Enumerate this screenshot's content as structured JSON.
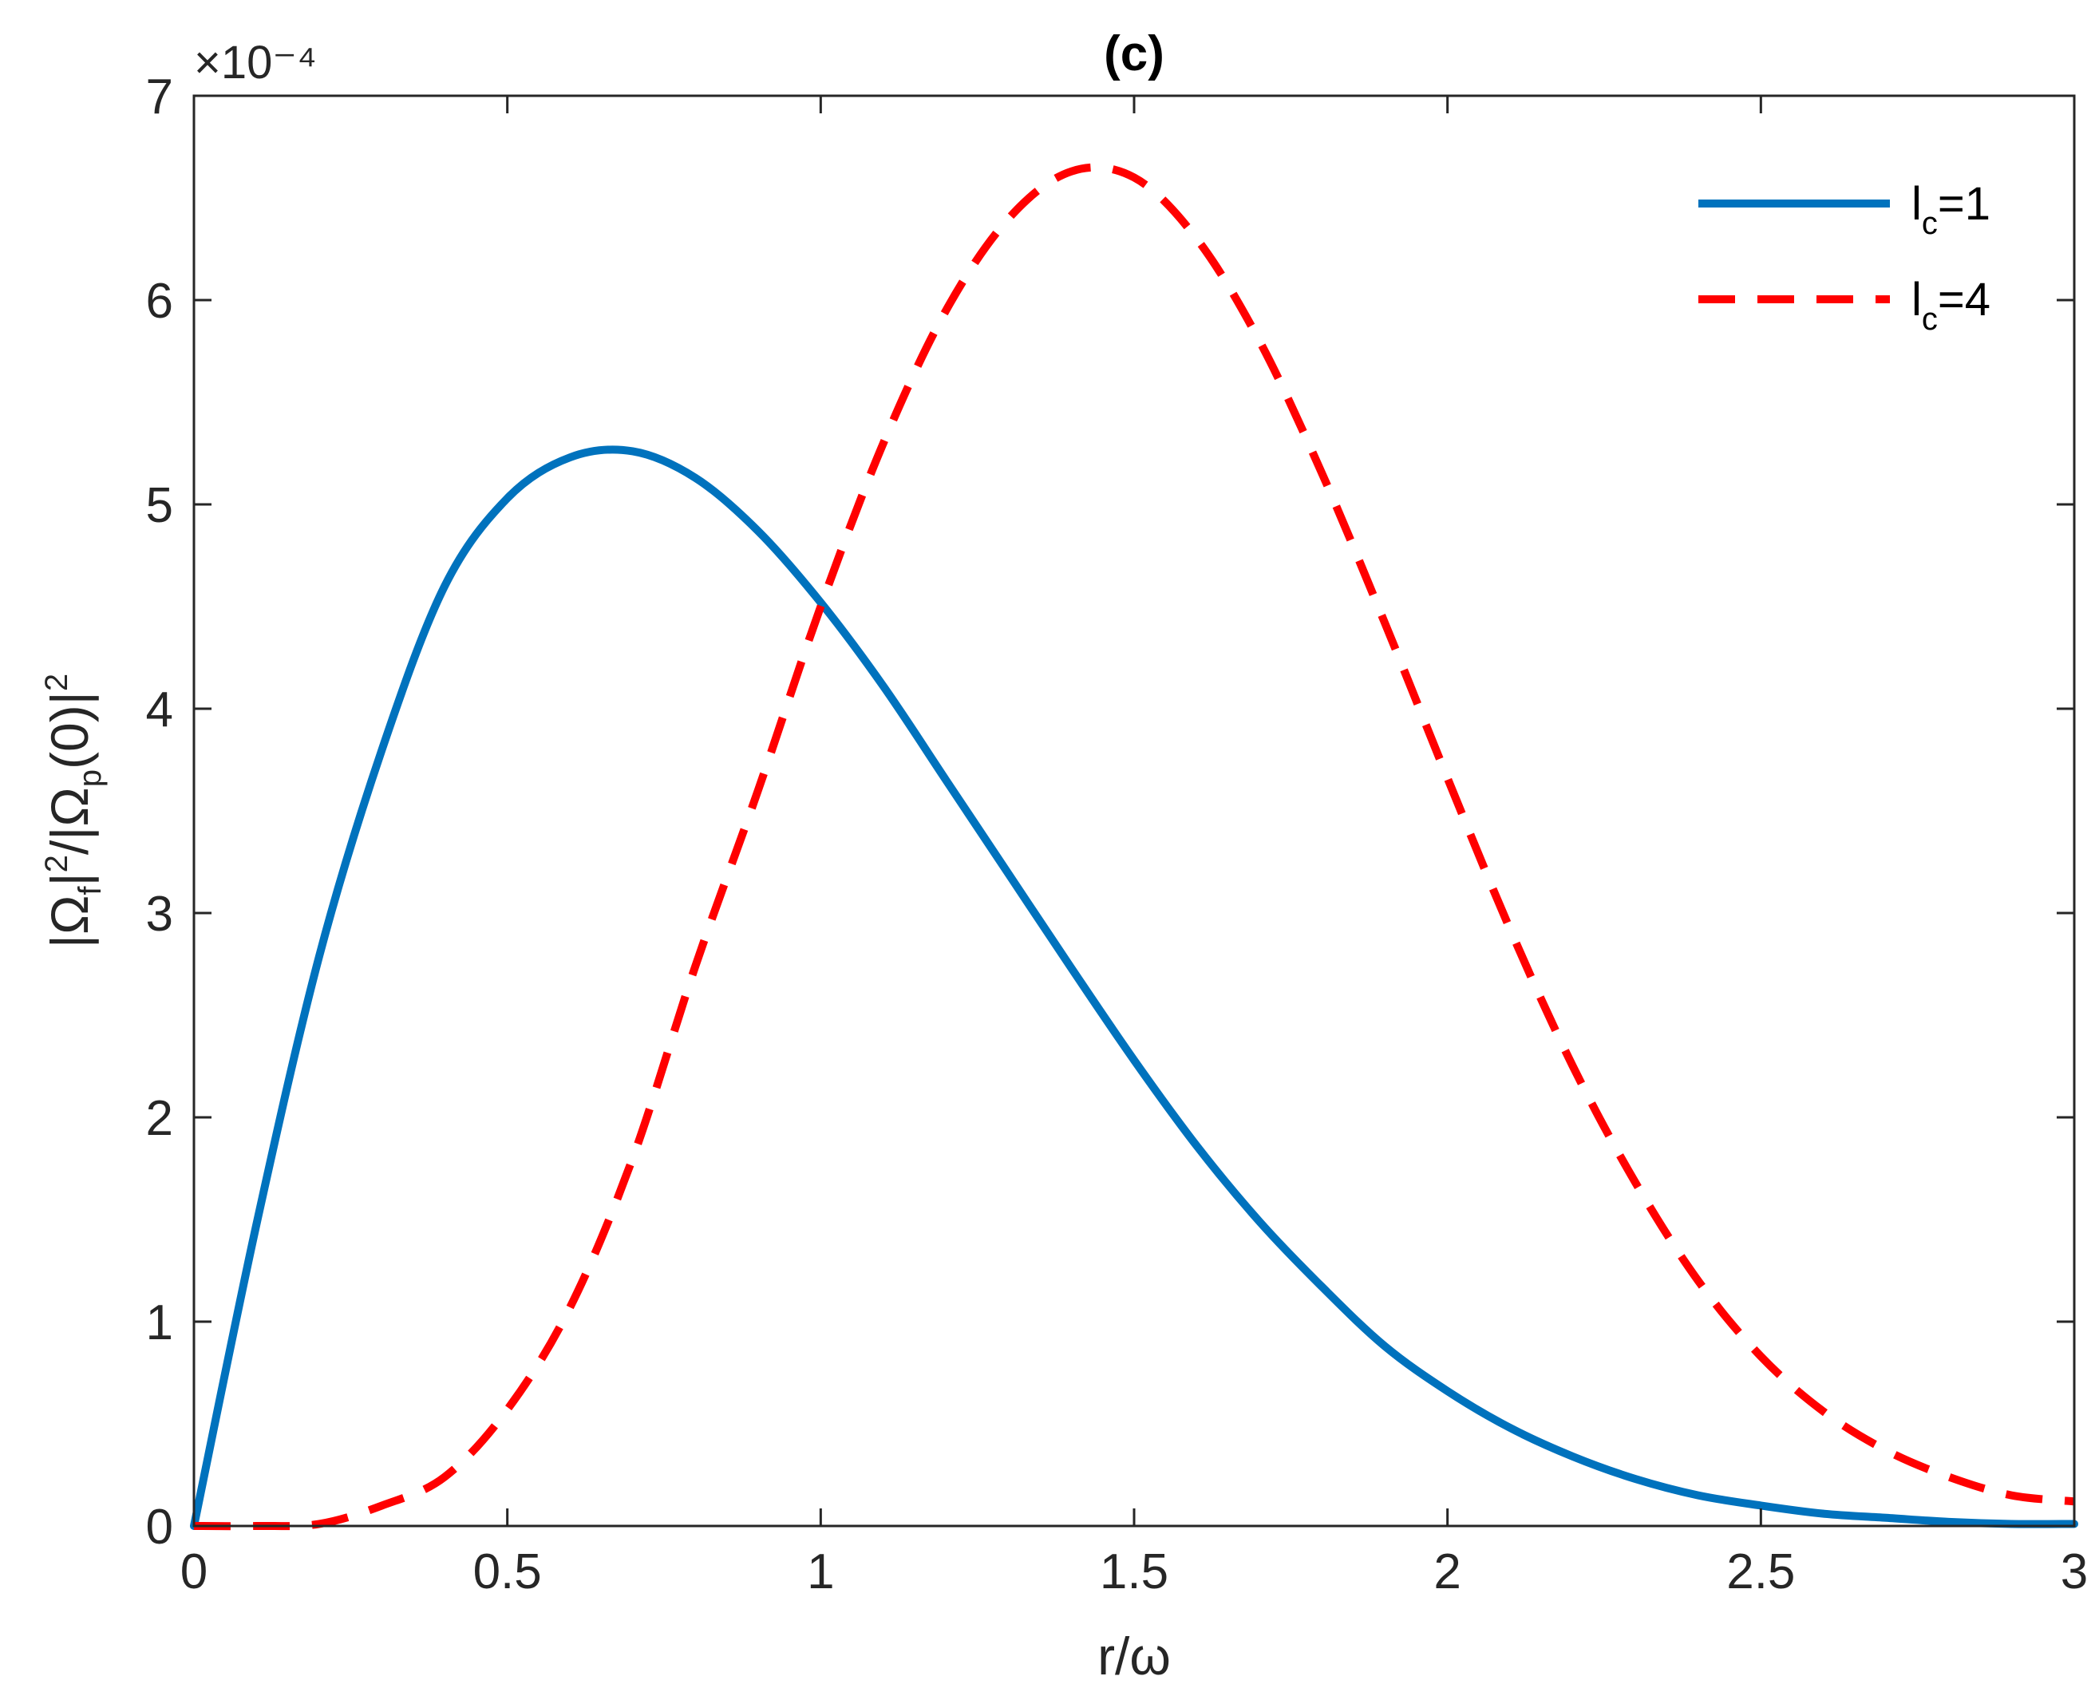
{
  "chart_data": {
    "type": "line",
    "title": "(c)",
    "xlabel": "r/ω",
    "ylabel": "|Ωf|²/|Ωp(0)|²",
    "y_exponent": "×10⁻⁴",
    "xlim": [
      0,
      3
    ],
    "ylim": [
      0,
      7
    ],
    "y_scale": 0.0001,
    "xticks": [
      0,
      0.5,
      1,
      1.5,
      2,
      2.5,
      3
    ],
    "xtick_labels": [
      "0",
      "0.5",
      "1",
      "1.5",
      "2",
      "2.5",
      "3"
    ],
    "yticks": [
      0,
      1,
      2,
      3,
      4,
      5,
      6,
      7
    ],
    "ytick_labels": [
      "0",
      "1",
      "2",
      "3",
      "4",
      "5",
      "6",
      "7"
    ],
    "grid": false,
    "legend_position": "top-right",
    "x": [
      0,
      0.1,
      0.2,
      0.3,
      0.4,
      0.5,
      0.6,
      0.7,
      0.8,
      0.9,
      1.0,
      1.1,
      1.2,
      1.3,
      1.4,
      1.5,
      1.6,
      1.7,
      1.8,
      1.9,
      2.0,
      2.1,
      2.2,
      2.3,
      2.4,
      2.5,
      2.6,
      2.7,
      2.8,
      2.9,
      3.0
    ],
    "series": [
      {
        "name": "l_c=1",
        "legend_main": "l",
        "legend_sub": "c",
        "legend_rest": "=1",
        "color": "#0072BD",
        "style": "solid",
        "values": [
          0,
          1.48,
          2.79,
          3.8,
          4.6,
          5.03,
          5.23,
          5.26,
          5.13,
          4.87,
          4.52,
          4.11,
          3.65,
          3.19,
          2.73,
          2.28,
          1.86,
          1.49,
          1.17,
          0.88,
          0.66,
          0.48,
          0.34,
          0.23,
          0.15,
          0.1,
          0.06,
          0.04,
          0.02,
          0.01,
          0.01
        ]
      },
      {
        "name": "l_c=4",
        "legend_main": "l",
        "legend_sub": "c",
        "legend_rest": "=4",
        "color": "#FF0000",
        "style": "dashed",
        "values": [
          0,
          0,
          0.01,
          0.1,
          0.24,
          0.57,
          1.07,
          1.8,
          2.74,
          3.6,
          4.5,
          5.3,
          5.95,
          6.4,
          6.63,
          6.6,
          6.3,
          5.8,
          5.15,
          4.42,
          3.66,
          2.92,
          2.25,
          1.68,
          1.2,
          0.83,
          0.56,
          0.37,
          0.24,
          0.15,
          0.12
        ]
      }
    ]
  }
}
